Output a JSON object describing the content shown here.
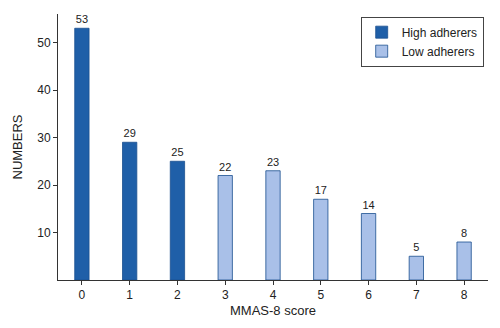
{
  "chart_data": {
    "type": "bar",
    "x_label": "MMAS-8 score",
    "y_label": "NUMBERS",
    "categories": [
      "0",
      "1",
      "2",
      "3",
      "4",
      "5",
      "6",
      "7",
      "8"
    ],
    "series": [
      {
        "name": "High adherers",
        "color": "#1f5fa8",
        "values": [
          53,
          29,
          25,
          null,
          null,
          null,
          null,
          null,
          null
        ]
      },
      {
        "name": "Low adherers",
        "color": "#a9c0e8",
        "values": [
          null,
          null,
          null,
          22,
          23,
          17,
          14,
          5,
          8
        ]
      }
    ],
    "ylim": [
      0,
      56
    ],
    "yticks": [
      10,
      20,
      30,
      40,
      50
    ],
    "grid": false,
    "legend": "top-right",
    "data_labels": true
  }
}
